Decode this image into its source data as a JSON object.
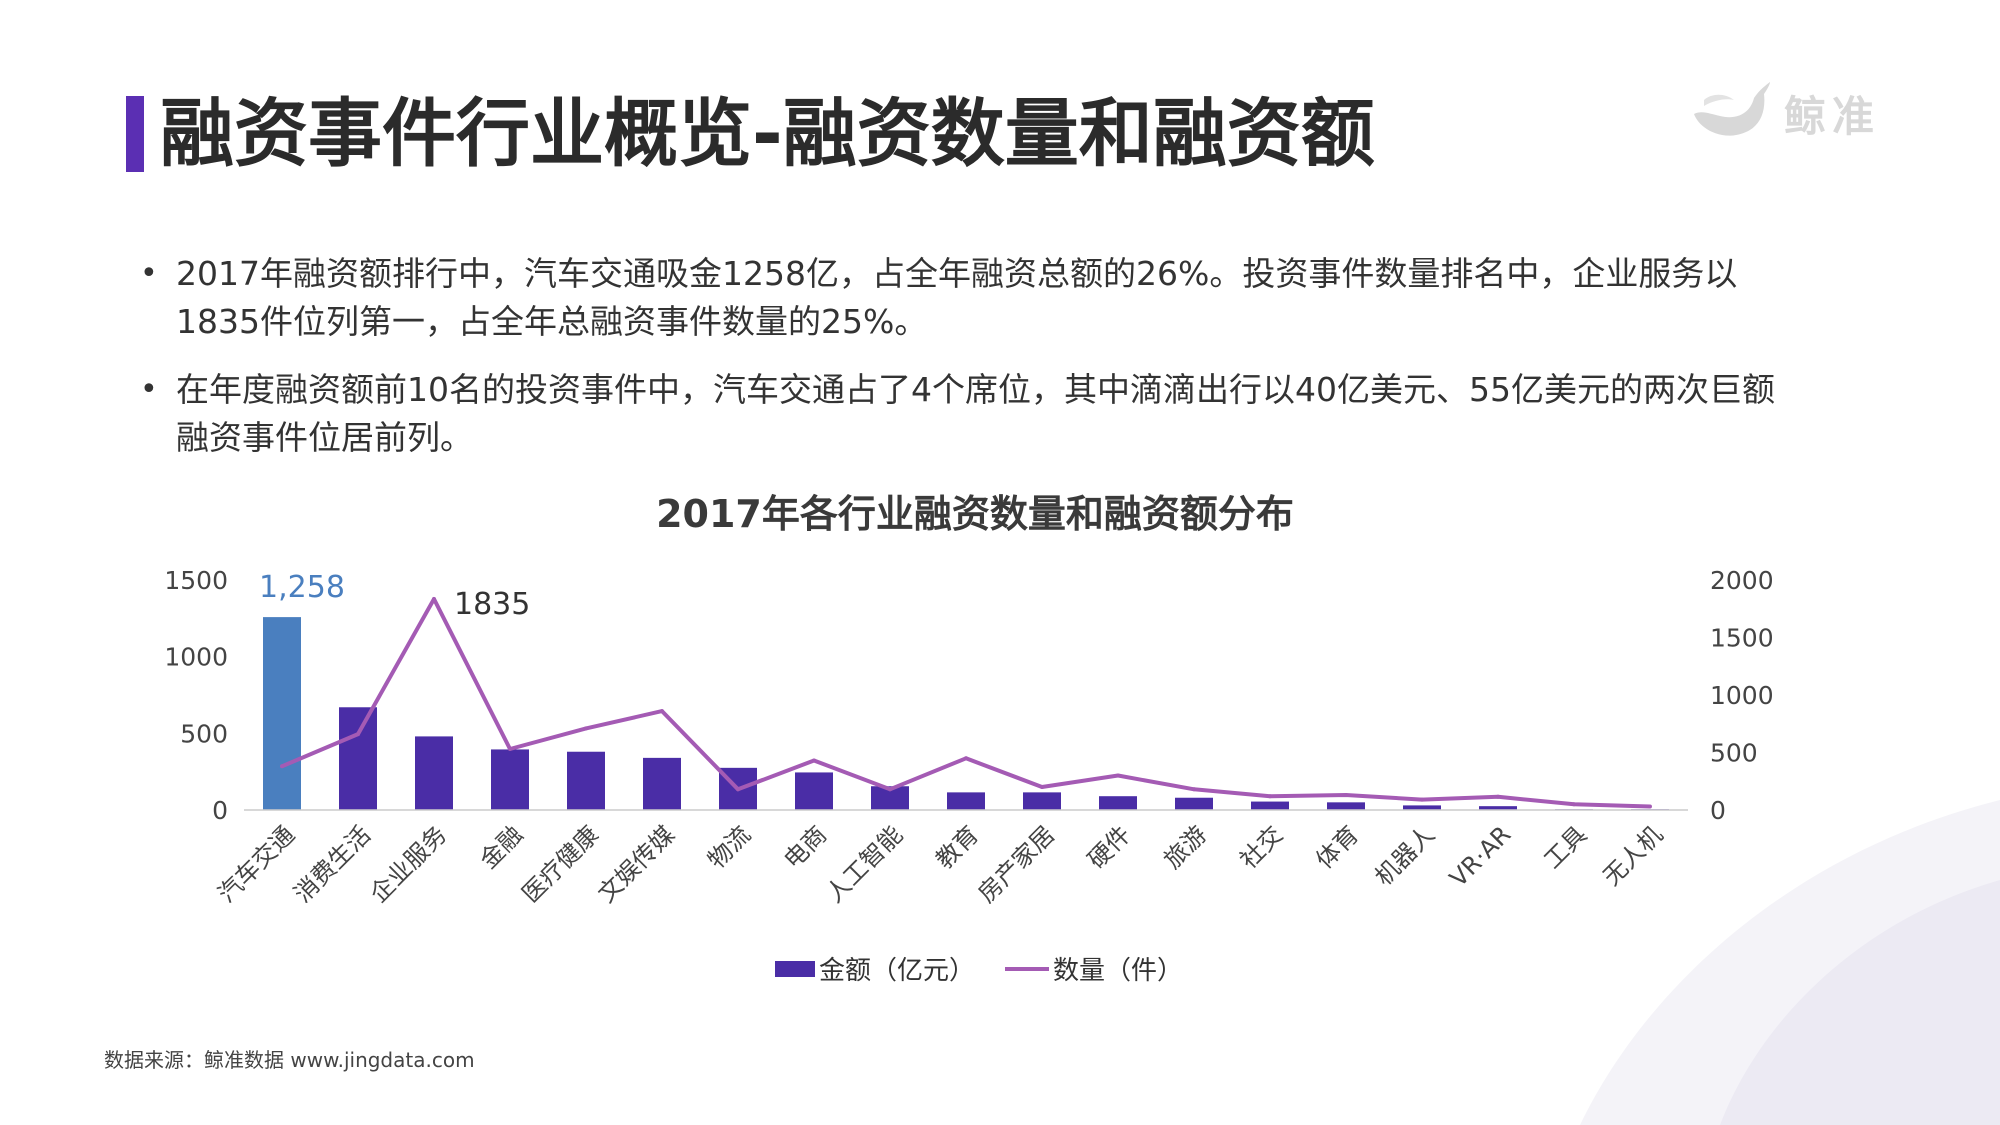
{
  "header": {
    "title": "融资事件行业概览-融资数量和融资额",
    "brand_name": "鲸准",
    "brand_icon": "whale-logo"
  },
  "bullets": [
    "2017年融资额排行中，汽车交通吸金1258亿，占全年融资总额的26%。投资事件数量排名中，企业服务以1835件位列第一，占全年总融资事件数量的25%。",
    "在年度融资额前10名的投资事件中，汽车交通占了4个席位，其中滴滴出行以40亿美元、55亿美元的两次巨额融资事件位居前列。"
  ],
  "chart_data": {
    "type": "bar",
    "title": "2017年各行业融资数量和融资额分布",
    "categories": [
      "汽车交通",
      "消费生活",
      "企业服务",
      "金融",
      "医疗健康",
      "文娱传媒",
      "物流",
      "电商",
      "人工智能",
      "教育",
      "房产家居",
      "硬件",
      "旅游",
      "社交",
      "体育",
      "机器人",
      "VR·AR",
      "工具",
      "无人机"
    ],
    "series": [
      {
        "name": "金额（亿元）",
        "type": "bar",
        "axis": "left",
        "color": "#4a2da6",
        "highlight_color": "#4a7fbf",
        "values": [
          1258,
          670,
          480,
          395,
          380,
          340,
          275,
          245,
          155,
          115,
          115,
          90,
          80,
          55,
          50,
          30,
          25,
          5,
          5
        ]
      },
      {
        "name": "数量（件）",
        "type": "line",
        "axis": "right",
        "color": "#a45bb4",
        "values": [
          380,
          660,
          1835,
          530,
          710,
          860,
          180,
          430,
          180,
          450,
          200,
          300,
          180,
          120,
          130,
          90,
          115,
          50,
          30
        ]
      }
    ],
    "y_left": {
      "min": 0,
      "max": 1500,
      "ticks": [
        0,
        500,
        1000,
        1500
      ]
    },
    "y_right": {
      "min": 0,
      "max": 2000,
      "ticks": [
        0,
        500,
        1000,
        1500,
        2000
      ]
    },
    "annotations": [
      {
        "series": 0,
        "index": 0,
        "text": "1,258",
        "color": "#4a7fbf"
      },
      {
        "series": 1,
        "index": 2,
        "text": "1835",
        "color": "#333333"
      }
    ],
    "legend_position": "bottom",
    "grid": false
  },
  "legend": {
    "bar_label": "金额（亿元）",
    "line_label": "数量（件）"
  },
  "footer": {
    "source": "数据来源：鲸准数据 www.jingdata.com"
  }
}
